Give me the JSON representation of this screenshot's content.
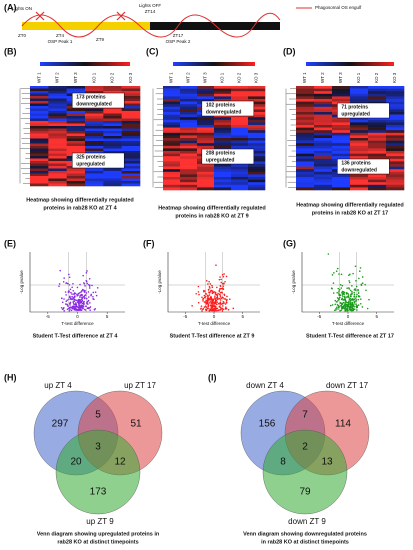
{
  "panel_a": {
    "label": "(A)",
    "texts": [
      "Lights ON",
      "ZT0",
      "ZT4",
      "OSP Peak 1",
      "ZT9",
      "Lights OFF",
      "ZT14",
      "ZT17",
      "OSP Peak 2"
    ],
    "legend": "Phagosomal OS engulf"
  },
  "heatmaps": [
    {
      "label": "(B)",
      "columns": [
        "WT 1",
        "WT 2",
        "WT 3",
        "KO 1",
        "KO 2",
        "KO 3"
      ],
      "boxes": [
        [
          "173 proteins",
          "downregulated"
        ],
        [
          "325 proteins",
          "upregulated"
        ]
      ],
      "caption": [
        "Heatmap showing differentially regulated",
        "proteins in rab28 KO at ZT 4"
      ]
    },
    {
      "label": "(C)",
      "columns": [
        "WT 1",
        "WT 2",
        "WT 3",
        "KO 1",
        "KO 2",
        "KO 3"
      ],
      "boxes": [
        [
          "102 proteins",
          "downregulated"
        ],
        [
          "208 proteins",
          "upregulated"
        ]
      ],
      "caption": [
        "Heatmap showing differentially regulated",
        "proteins in rab28 KO at ZT 9"
      ]
    },
    {
      "label": "(D)",
      "columns": [
        "WT 1",
        "WT 2",
        "WT 3",
        "KO 1",
        "KO 2",
        "KO 3"
      ],
      "boxes": [
        [
          "71 proteins",
          "upregulated"
        ],
        [
          "136 proteins",
          "downregulated"
        ]
      ],
      "caption": [
        "Heatmap showing differentially regulated",
        "proteins in rab28 KO at ZT 17"
      ]
    }
  ],
  "volcanos": [
    {
      "label": "(E)",
      "ylabel": "-Log pvalue",
      "xlabel": "T-test difference",
      "xlim": [
        -8,
        8
      ],
      "xticks": [
        -5,
        0,
        5
      ],
      "caption": "Student T-Test difference at ZT 4"
    },
    {
      "label": "(F)",
      "ylabel": "-Log pvalue",
      "xlabel": "T-test difference",
      "xlim": [
        -8,
        8
      ],
      "xticks": [
        -5,
        0,
        5
      ],
      "caption": "Student T-Test difference at ZT 9"
    },
    {
      "label": "(G)",
      "ylabel": "-Log pvalue",
      "xlabel": "T-test difference",
      "xlim": [
        -8,
        8
      ],
      "xticks": [
        -5,
        0,
        5
      ],
      "caption": "Student T-Test difference at ZT 17"
    }
  ],
  "venns": [
    {
      "label": "(H)",
      "sets": [
        "up ZT 4",
        "up ZT 17",
        "up ZT 9"
      ],
      "regions": [
        297,
        5,
        51,
        20,
        3,
        12,
        173
      ],
      "caption": [
        "Venn diagram showing upregulated proteins in",
        "rab28 KO at distinct timepoints"
      ]
    },
    {
      "label": "(I)",
      "sets": [
        "down ZT 4",
        "down ZT 17",
        "down ZT 9"
      ],
      "regions": [
        156,
        7,
        114,
        8,
        2,
        13,
        79
      ],
      "caption": [
        "Venn diagram showing downregulated proteins",
        "in rab28 KO at distinct timepoints"
      ]
    }
  ]
}
